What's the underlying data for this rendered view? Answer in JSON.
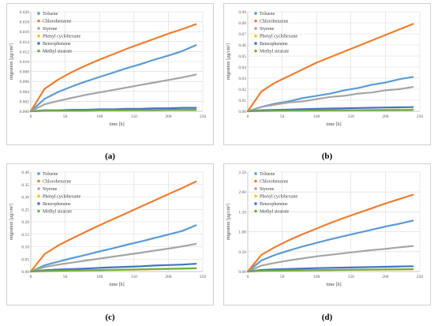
{
  "chart_data": [
    {
      "type": "line",
      "caption": "(a)",
      "xlabel": "time [h]",
      "ylabel": "migration [µg/cm²]",
      "xlim": [
        0,
        250
      ],
      "ylim": [
        0,
        0.02
      ],
      "xticks": [
        "0",
        "50",
        "100",
        "150",
        "200",
        "250"
      ],
      "yticks": [
        "0.000",
        "0.002",
        "0.004",
        "0.006",
        "0.008",
        "0.010",
        "0.012",
        "0.014",
        "0.016",
        "0.018",
        "0.020"
      ],
      "grid": true,
      "legend_position": "top-left inside",
      "x": [
        0,
        20,
        40,
        60,
        80,
        100,
        120,
        140,
        160,
        180,
        200,
        220,
        240
      ],
      "series": [
        {
          "name": "Toluene",
          "color": "#5b9bd5",
          "values": [
            0,
            0.0025,
            0.0039,
            0.005,
            0.006,
            0.0069,
            0.0078,
            0.0087,
            0.0095,
            0.0104,
            0.0112,
            0.0121,
            0.0133
          ]
        },
        {
          "name": "Chlorobenzene",
          "color": "#ed7d31",
          "values": [
            0,
            0.0045,
            0.0064,
            0.0079,
            0.0092,
            0.0104,
            0.0115,
            0.0126,
            0.0136,
            0.0146,
            0.0156,
            0.0165,
            0.0175
          ]
        },
        {
          "name": "Styrene",
          "color": "#a5a5a5",
          "values": [
            0,
            0.0014,
            0.0021,
            0.0027,
            0.0033,
            0.0038,
            0.0043,
            0.0048,
            0.0053,
            0.0058,
            0.0063,
            0.0068,
            0.0074
          ]
        },
        {
          "name": "Phenyl cyclohexane",
          "color": "#ffc000",
          "values": [
            0,
            0.0001,
            0.0001,
            0.0001,
            0.0002,
            0.0002,
            0.0002,
            0.0002,
            0.0003,
            0.0003,
            0.0003,
            0.0003,
            0.0003
          ]
        },
        {
          "name": "Benzophenone",
          "color": "#4472c4",
          "values": [
            0,
            0.0002,
            0.0002,
            0.0003,
            0.0003,
            0.0004,
            0.0004,
            0.0005,
            0.0005,
            0.0006,
            0.0006,
            0.0007,
            0.0007
          ]
        },
        {
          "name": "Methyl stearate",
          "color": "#70ad47",
          "values": [
            0,
            0.0001,
            0.0001,
            0.0001,
            0.0001,
            0.0002,
            0.0002,
            0.0002,
            0.0002,
            0.0002,
            0.0003,
            0.0003,
            0.0003
          ]
        }
      ]
    },
    {
      "type": "line",
      "caption": "(b)",
      "xlabel": "time [h]",
      "ylabel": "migration [µg/cm²]",
      "xlim": [
        0,
        250
      ],
      "ylim": [
        0,
        0.09
      ],
      "xticks": [
        "0",
        "50",
        "100",
        "150",
        "200",
        "250"
      ],
      "yticks": [
        "0.00",
        "0.01",
        "0.02",
        "0.03",
        "0.04",
        "0.05",
        "0.06",
        "0.07",
        "0.08",
        "0.09"
      ],
      "grid": true,
      "legend_position": "top-left inside",
      "x": [
        0,
        20,
        40,
        60,
        80,
        100,
        120,
        140,
        160,
        180,
        200,
        220,
        240
      ],
      "series": [
        {
          "name": "Toluene",
          "color": "#5b9bd5",
          "values": [
            0,
            0.004,
            0.007,
            0.009,
            0.012,
            0.014,
            0.016,
            0.019,
            0.021,
            0.024,
            0.026,
            0.029,
            0.031
          ]
        },
        {
          "name": "Chlorobenzene",
          "color": "#ed7d31",
          "values": [
            0,
            0.018,
            0.026,
            0.032,
            0.038,
            0.044,
            0.049,
            0.054,
            0.059,
            0.064,
            0.069,
            0.074,
            0.079
          ]
        },
        {
          "name": "Styrene",
          "color": "#a5a5a5",
          "values": [
            0,
            0.004,
            0.006,
            0.008,
            0.009,
            0.011,
            0.013,
            0.014,
            0.016,
            0.017,
            0.019,
            0.02,
            0.022
          ]
        },
        {
          "name": "Phenyl cyclohexane",
          "color": "#ffc000",
          "values": [
            0,
            0.0004,
            0.0006,
            0.0007,
            0.0008,
            0.0009,
            0.001,
            0.0011,
            0.0012,
            0.0013,
            0.0014,
            0.0014,
            0.0015
          ]
        },
        {
          "name": "Benzophenone",
          "color": "#4472c4",
          "values": [
            0,
            0.001,
            0.0013,
            0.0016,
            0.0019,
            0.0022,
            0.0025,
            0.0027,
            0.003,
            0.0032,
            0.0034,
            0.0036,
            0.0038
          ]
        },
        {
          "name": "Methyl stearate",
          "color": "#70ad47",
          "values": [
            0,
            0.0003,
            0.0004,
            0.0005,
            0.0006,
            0.0007,
            0.0008,
            0.0008,
            0.0009,
            0.001,
            0.001,
            0.0011,
            0.0012
          ]
        }
      ]
    },
    {
      "type": "line",
      "caption": "(c)",
      "xlabel": "time [h]",
      "ylabel": "migration [µg/cm²]",
      "xlim": [
        0,
        250
      ],
      "ylim": [
        0,
        0.4
      ],
      "xticks": [
        "0",
        "50",
        "100",
        "150",
        "200",
        "250"
      ],
      "yticks": [
        "0.00",
        "0.05",
        "0.10",
        "0.15",
        "0.20",
        "0.25",
        "0.30",
        "0.35",
        "0.40"
      ],
      "grid": true,
      "legend_position": "top-left inside",
      "x": [
        0,
        20,
        40,
        60,
        80,
        100,
        120,
        140,
        160,
        180,
        200,
        220,
        240
      ],
      "series": [
        {
          "name": "Toluene",
          "color": "#5b9bd5",
          "values": [
            0,
            0.025,
            0.04,
            0.054,
            0.067,
            0.081,
            0.094,
            0.108,
            0.121,
            0.135,
            0.149,
            0.163,
            0.186
          ]
        },
        {
          "name": "Chlorobenzene",
          "color": "#ed7d31",
          "values": [
            0,
            0.07,
            0.105,
            0.133,
            0.16,
            0.186,
            0.211,
            0.236,
            0.261,
            0.286,
            0.311,
            0.336,
            0.362
          ]
        },
        {
          "name": "Styrene",
          "color": "#a5a5a5",
          "values": [
            0,
            0.018,
            0.028,
            0.036,
            0.044,
            0.052,
            0.06,
            0.068,
            0.076,
            0.084,
            0.092,
            0.101,
            0.111
          ]
        },
        {
          "name": "Phenyl cyclohexane",
          "color": "#ffc000",
          "values": [
            0,
            0.001,
            0.002,
            0.003,
            0.004,
            0.005,
            0.006,
            0.007,
            0.008,
            0.009,
            0.01,
            0.011,
            0.013
          ]
        },
        {
          "name": "Benzophenone",
          "color": "#4472c4",
          "values": [
            0,
            0.005,
            0.008,
            0.01,
            0.012,
            0.015,
            0.017,
            0.019,
            0.021,
            0.024,
            0.026,
            0.028,
            0.031
          ]
        },
        {
          "name": "Methyl stearate",
          "color": "#70ad47",
          "values": [
            0,
            0.002,
            0.003,
            0.004,
            0.005,
            0.006,
            0.007,
            0.008,
            0.009,
            0.01,
            0.011,
            0.012,
            0.013
          ]
        }
      ]
    },
    {
      "type": "line",
      "caption": "(d)",
      "xlabel": "time [h]",
      "ylabel": "migration [µg/cm²]",
      "xlim": [
        0,
        250
      ],
      "ylim": [
        0,
        2.5
      ],
      "xticks": [
        "0",
        "50",
        "100",
        "150",
        "200",
        "250"
      ],
      "yticks": [
        "0.00",
        "0.50",
        "1.00",
        "1.50",
        "2.00",
        "2.50"
      ],
      "grid": true,
      "legend_position": "top-left inside",
      "x": [
        0,
        20,
        40,
        60,
        80,
        100,
        120,
        140,
        160,
        180,
        200,
        220,
        240
      ],
      "series": [
        {
          "name": "Toluene",
          "color": "#5b9bd5",
          "values": [
            0,
            0.28,
            0.42,
            0.53,
            0.63,
            0.72,
            0.81,
            0.89,
            0.97,
            1.05,
            1.13,
            1.2,
            1.28
          ]
        },
        {
          "name": "Chlorobenzene",
          "color": "#ed7d31",
          "values": [
            0,
            0.42,
            0.62,
            0.79,
            0.94,
            1.08,
            1.22,
            1.35,
            1.47,
            1.59,
            1.71,
            1.82,
            1.93
          ]
        },
        {
          "name": "Styrene",
          "color": "#a5a5a5",
          "values": [
            0,
            0.15,
            0.22,
            0.28,
            0.33,
            0.38,
            0.42,
            0.46,
            0.5,
            0.54,
            0.57,
            0.61,
            0.64
          ]
        },
        {
          "name": "Phenyl cyclohexane",
          "color": "#ffc000",
          "values": [
            0,
            0.015,
            0.02,
            0.025,
            0.03,
            0.033,
            0.036,
            0.04,
            0.043,
            0.046,
            0.049,
            0.052,
            0.055
          ]
        },
        {
          "name": "Benzophenone",
          "color": "#4472c4",
          "values": [
            0,
            0.04,
            0.055,
            0.065,
            0.075,
            0.085,
            0.093,
            0.1,
            0.107,
            0.114,
            0.12,
            0.126,
            0.132
          ]
        },
        {
          "name": "Methyl stearate",
          "color": "#70ad47",
          "values": [
            0,
            0.015,
            0.022,
            0.027,
            0.032,
            0.036,
            0.04,
            0.044,
            0.047,
            0.05,
            0.053,
            0.056,
            0.06
          ]
        }
      ]
    }
  ]
}
